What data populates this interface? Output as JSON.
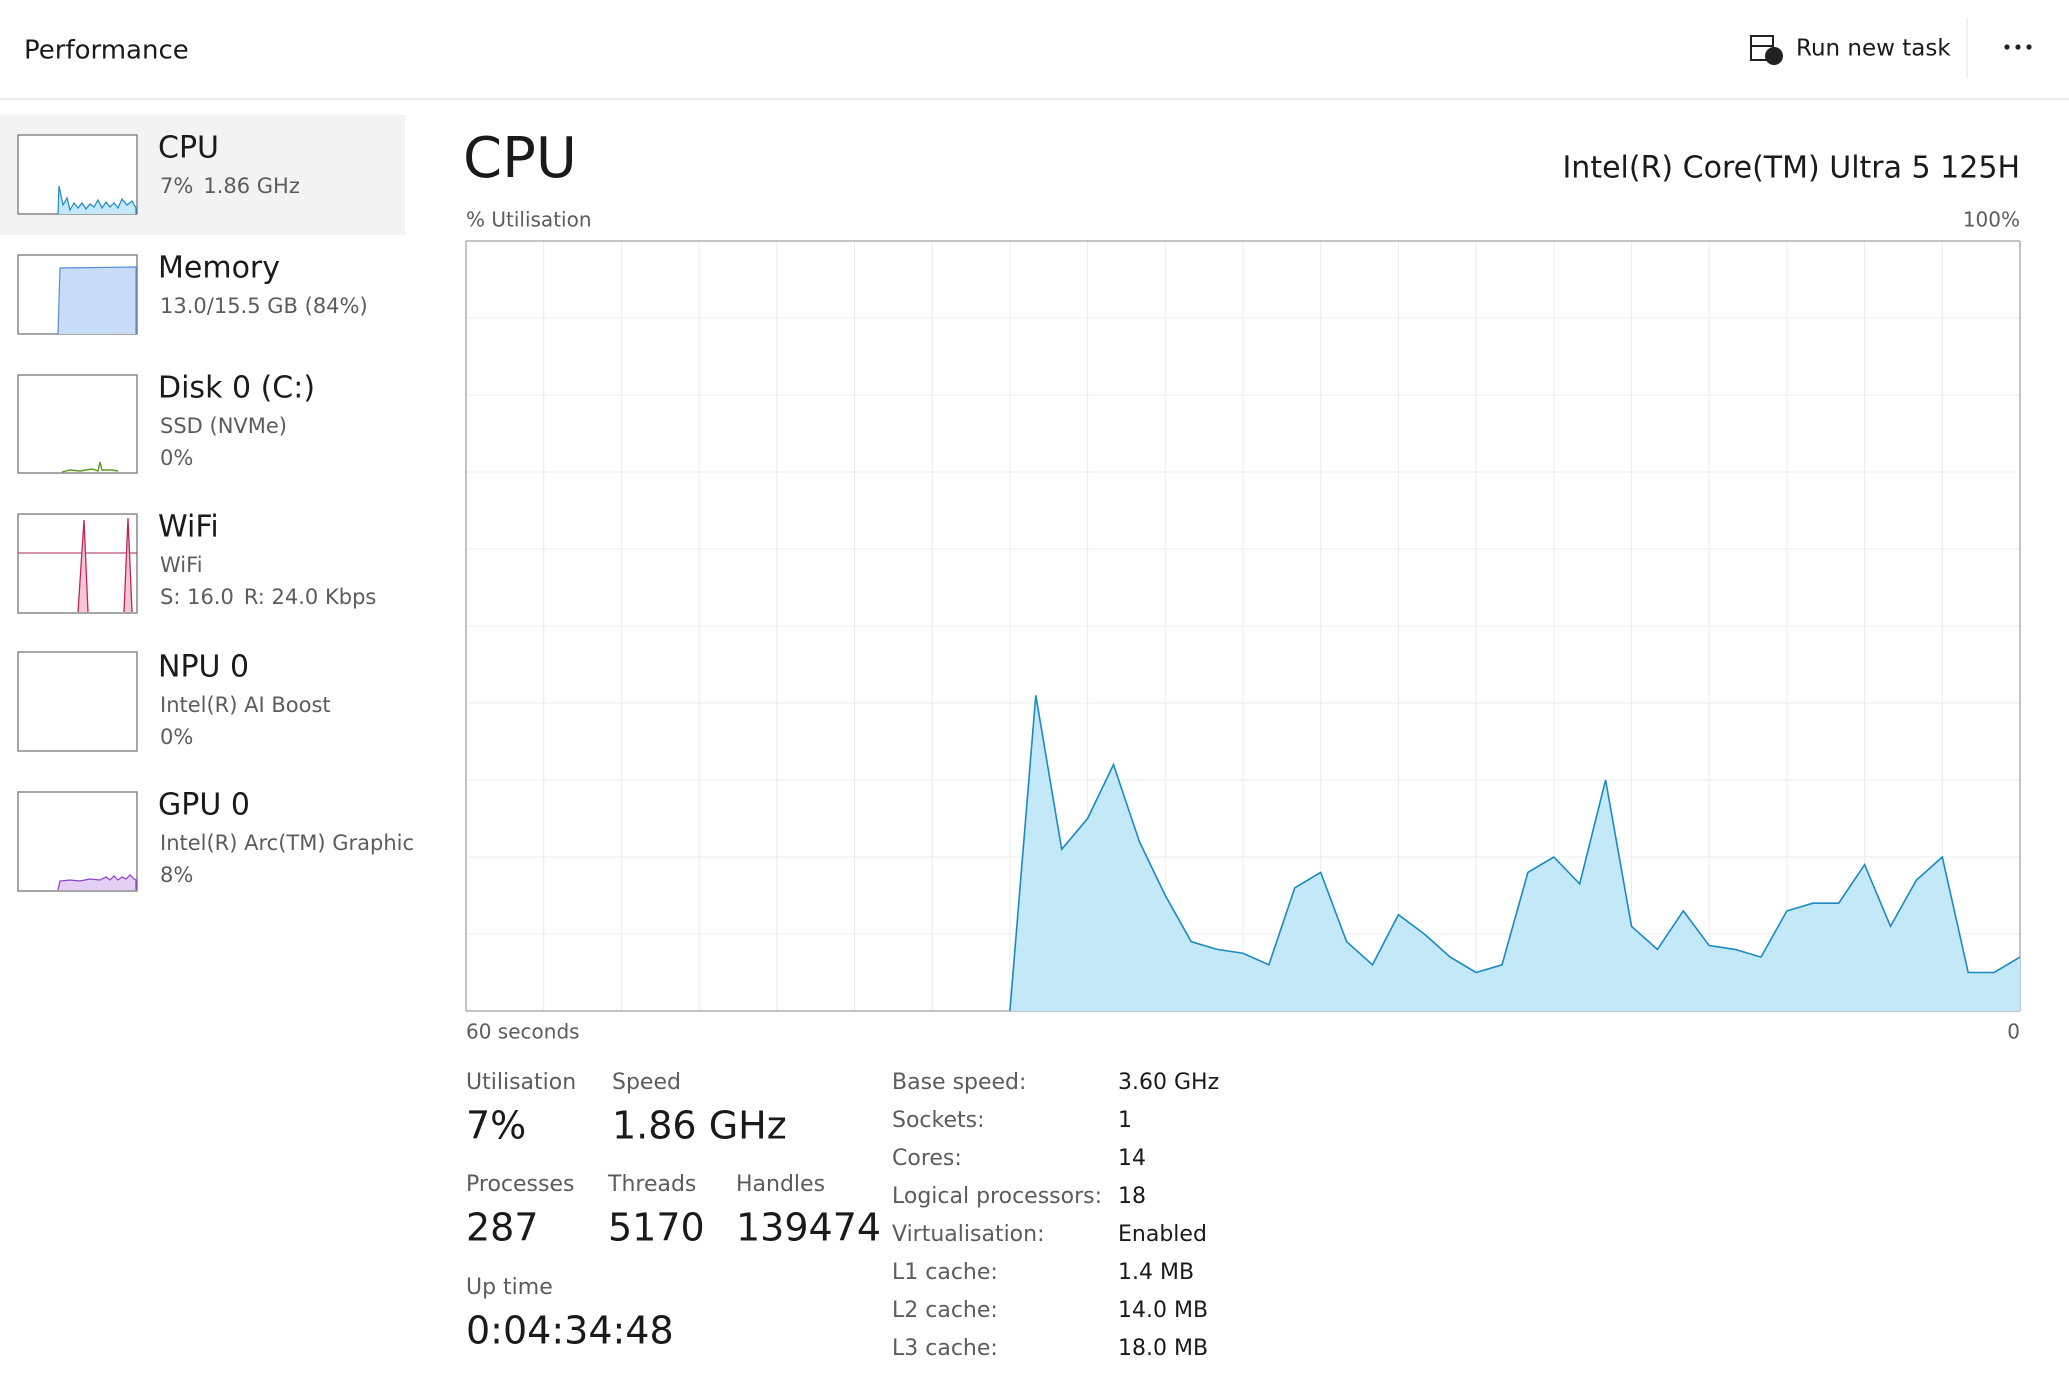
{
  "header": {
    "title": "Performance",
    "action": "Run new task"
  },
  "sidebar": [
    {
      "title": "CPU",
      "lines": [
        [
          "7%",
          "1.86 GHz"
        ]
      ]
    },
    {
      "title": "Memory",
      "lines": [
        [
          "13.0/15.5 GB (84%)"
        ]
      ]
    },
    {
      "title": "Disk 0 (C:)",
      "lines": [
        [
          "SSD (NVMe)"
        ],
        [
          "0%"
        ]
      ]
    },
    {
      "title": "WiFi",
      "lines": [
        [
          "WiFi"
        ],
        [
          "S: 16.0",
          "R: 24.0 Kbps"
        ]
      ]
    },
    {
      "title": "NPU 0",
      "lines": [
        [
          "Intel(R) AI Boost"
        ],
        [
          "0%"
        ]
      ]
    },
    {
      "title": "GPU 0",
      "lines": [
        [
          "Intel(R) Arc(TM) Graphic"
        ],
        [
          "8%"
        ]
      ]
    }
  ],
  "chart_data": {
    "type": "area",
    "title": "CPU",
    "subtitle": "Intel(R) Core(TM) Ultra 5 125H",
    "y_label": "% Utilisation",
    "x": [
      39,
      38,
      37,
      36,
      35,
      34,
      33,
      32,
      31,
      30,
      29,
      28,
      27,
      26,
      25,
      24,
      23,
      22,
      21,
      20,
      19,
      18,
      17,
      16,
      15,
      14,
      13,
      12,
      11,
      10,
      9,
      8,
      7,
      6,
      5,
      4,
      3,
      2,
      1,
      0
    ],
    "values": [
      0,
      41,
      21,
      25,
      32,
      22,
      15,
      9,
      8,
      7.5,
      6,
      16,
      18,
      9,
      6,
      12.5,
      10,
      7,
      5,
      6,
      18,
      20,
      16.5,
      30,
      11,
      8,
      13,
      8.5,
      8,
      7,
      13,
      14,
      14,
      19,
      11,
      17,
      20,
      5,
      5,
      7
    ],
    "color": "#1a8ac0",
    "fill": "#c3e8f7",
    "xlim": [
      60,
      0
    ],
    "ylim": [
      0,
      100
    ],
    "xticks": [
      {
        "value": 60,
        "label": "60 seconds"
      },
      {
        "value": 0,
        "label": "0"
      }
    ],
    "yticks": [
      {
        "value": 100,
        "label": "100%"
      }
    ],
    "grid": true
  },
  "stats": [
    {
      "label": "Utilisation",
      "value": "7%"
    },
    {
      "label": "Speed",
      "value": "1.86 GHz"
    },
    {
      "label": "Processes",
      "value": "287"
    },
    {
      "label": "Threads",
      "value": "5170"
    },
    {
      "label": "Handles",
      "value": "139474"
    },
    {
      "label": "Up time",
      "value": "0:04:34:48"
    }
  ],
  "specs": [
    [
      "Base speed:",
      "3.60 GHz"
    ],
    [
      "Sockets:",
      "1"
    ],
    [
      "Cores:",
      "14"
    ],
    [
      "Logical processors:",
      "18"
    ],
    [
      "Virtualisation:",
      "Enabled"
    ],
    [
      "L1 cache:",
      "1.4 MB"
    ],
    [
      "L2 cache:",
      "14.0 MB"
    ],
    [
      "L3 cache:",
      "18.0 MB"
    ]
  ]
}
